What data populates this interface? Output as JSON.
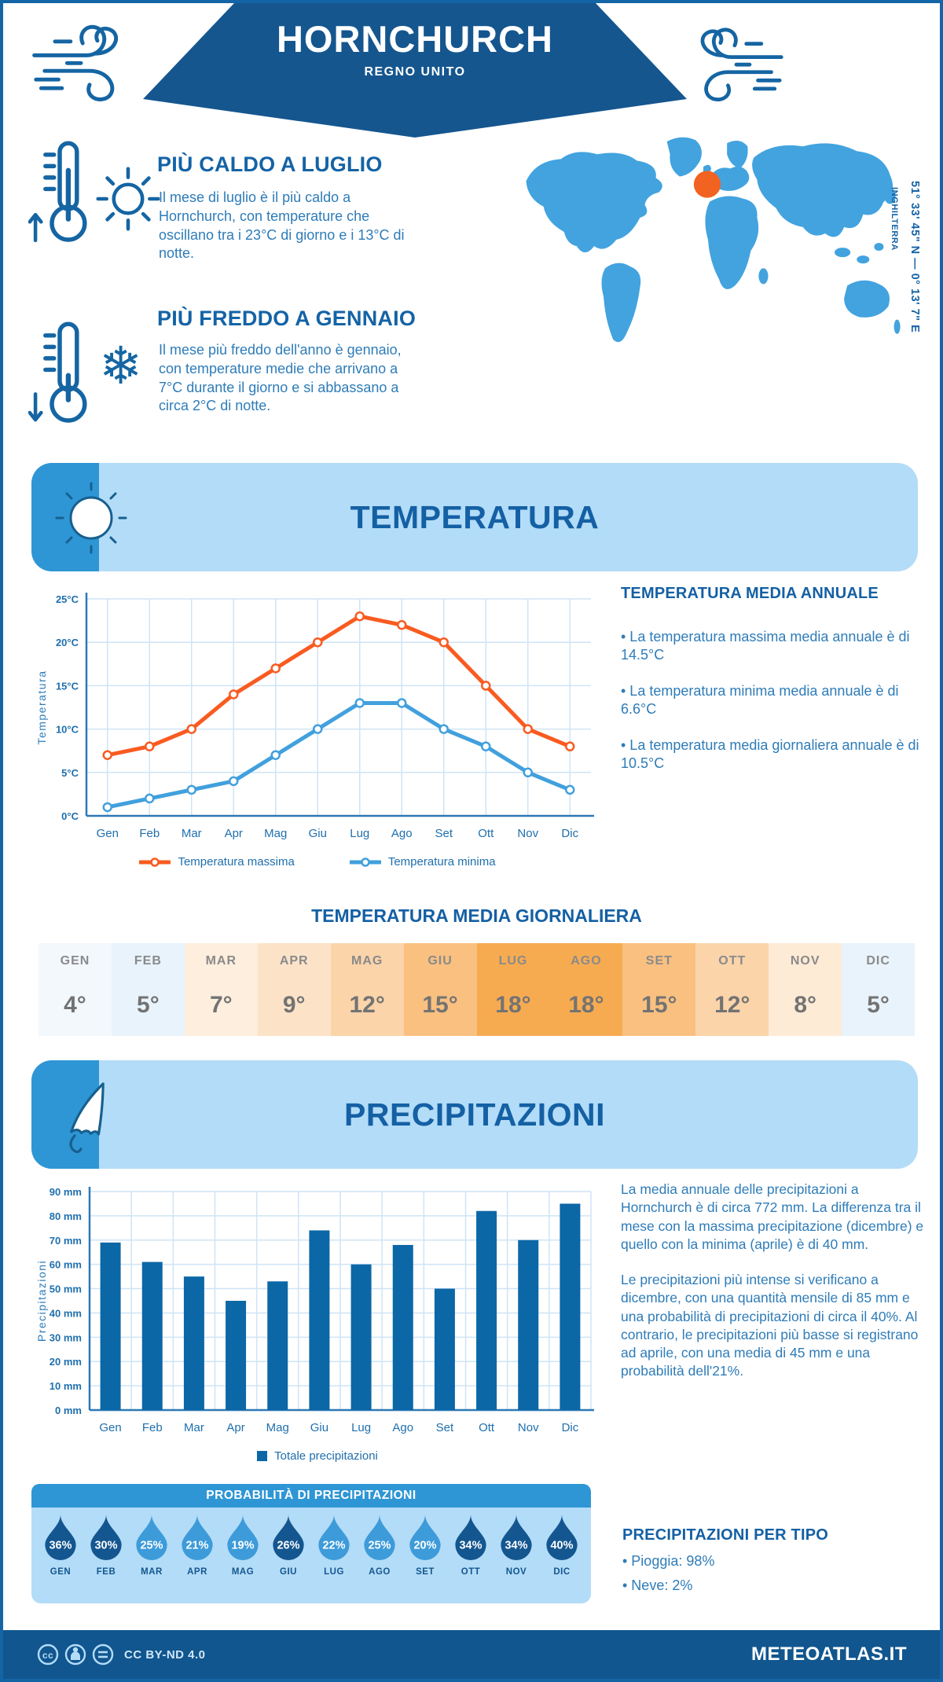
{
  "header": {
    "title": "HORNCHURCH",
    "subtitle": "REGNO UNITO"
  },
  "highlights": [
    {
      "title": "PIÙ CALDO A LUGLIO",
      "text": "Il mese di luglio è il più caldo a Hornchurch, con temperature che oscillano tra i 23°C di giorno e i 13°C di notte."
    },
    {
      "title": "PIÙ FREDDO A GENNAIO",
      "text": "Il mese più freddo dell'anno è gennaio, con temperature medie che arrivano a 7°C durante il giorno e si abbassano a circa 2°C di notte."
    }
  ],
  "map": {
    "coordinates": "51° 33' 45\" N — 0° 13' 7\" E",
    "region": "INGHILTERRA",
    "marker_color": "#f26221",
    "land_color": "#42a3df"
  },
  "sections": {
    "temperature": "TEMPERATURA",
    "precipitation": "PRECIPITAZIONI"
  },
  "chart_data": [
    {
      "type": "line",
      "title": "Temperatura",
      "categories": [
        "Gen",
        "Feb",
        "Mar",
        "Apr",
        "Mag",
        "Giu",
        "Lug",
        "Ago",
        "Set",
        "Ott",
        "Nov",
        "Dic"
      ],
      "series": [
        {
          "name": "Temperatura massima",
          "color": "#f95b20",
          "values": [
            7,
            8,
            10,
            14,
            17,
            20,
            23,
            22,
            20,
            15,
            10,
            8
          ]
        },
        {
          "name": "Temperatura minima",
          "color": "#41a0dd",
          "values": [
            1,
            2,
            3,
            4,
            7,
            10,
            13,
            13,
            10,
            8,
            5,
            3
          ]
        }
      ],
      "ylabel": "Temperatura",
      "yticks": [
        "0°C",
        "5°C",
        "10°C",
        "15°C",
        "20°C",
        "25°C"
      ],
      "ylim": [
        0,
        25
      ],
      "grid": true,
      "legend_position": "bottom"
    },
    {
      "type": "bar",
      "title": "Precipitazioni",
      "categories": [
        "Gen",
        "Feb",
        "Mar",
        "Apr",
        "Mag",
        "Giu",
        "Lug",
        "Ago",
        "Set",
        "Ott",
        "Nov",
        "Dic"
      ],
      "values": [
        69,
        61,
        55,
        45,
        53,
        74,
        60,
        68,
        50,
        82,
        70,
        85
      ],
      "legend": "Totale precipitazioni",
      "bar_color": "#0c67a6",
      "ylabel": "Precipitazioni",
      "yticks": [
        "0 mm",
        "10 mm",
        "20 mm",
        "30 mm",
        "40 mm",
        "50 mm",
        "60 mm",
        "70 mm",
        "80 mm",
        "90 mm"
      ],
      "ylim": [
        0,
        90
      ],
      "grid": true,
      "legend_position": "bottom"
    }
  ],
  "annual": {
    "title": "TEMPERATURA MEDIA ANNUALE",
    "bullets": [
      "• La temperatura massima media annuale è di 14.5°C",
      "• La temperatura minima media annuale è di 6.6°C",
      "• La temperatura media giornaliera annuale è di 10.5°C"
    ]
  },
  "daily_table": {
    "title": "TEMPERATURA MEDIA GIORNALIERA",
    "months": [
      "GEN",
      "FEB",
      "MAR",
      "APR",
      "MAG",
      "GIU",
      "LUG",
      "AGO",
      "SET",
      "OTT",
      "NOV",
      "DIC"
    ],
    "values": [
      "4°",
      "5°",
      "7°",
      "9°",
      "12°",
      "15°",
      "18°",
      "18°",
      "15°",
      "12°",
      "8°",
      "5°"
    ],
    "colors": [
      "#f3f8fd",
      "#e9f3fb",
      "#fdeedd",
      "#fce3c8",
      "#fbd4aa",
      "#f9c080",
      "#f7ab51",
      "#f7ab51",
      "#f9c080",
      "#fbd4aa",
      "#fdebd6",
      "#e9f3fb"
    ]
  },
  "precip_text": {
    "p1": "La media annuale delle precipitazioni a Hornchurch è di circa 772 mm. La differenza tra il mese con la massima precipitazione (dicembre) e quello con la minima (aprile) è di 40 mm.",
    "p2": "Le precipitazioni più intense si verificano a dicembre, con una quantità mensile di 85 mm e una probabilità di precipitazioni di circa il 40%. Al contrario, le precipitazioni più basse si registrano ad aprile, con una media di 45 mm e una probabilità dell'21%."
  },
  "probability": {
    "title": "PROBABILITÀ DI PRECIPITAZIONI",
    "months": [
      "GEN",
      "FEB",
      "MAR",
      "APR",
      "MAG",
      "GIU",
      "LUG",
      "AGO",
      "SET",
      "OTT",
      "NOV",
      "DIC"
    ],
    "values": [
      "36%",
      "30%",
      "25%",
      "21%",
      "19%",
      "26%",
      "22%",
      "25%",
      "20%",
      "34%",
      "34%",
      "40%"
    ],
    "dark": [
      true,
      true,
      false,
      false,
      false,
      true,
      false,
      false,
      false,
      true,
      true,
      true
    ],
    "drop_dark_color": "#14568f",
    "drop_light_color": "#3d9bd9"
  },
  "precip_type": {
    "title": "PRECIPITAZIONI PER TIPO",
    "bullets": [
      "• Pioggia: 98%",
      "• Neve: 2%"
    ]
  },
  "footer": {
    "license": "CC BY-ND 4.0",
    "site": "METEOATLAS.IT"
  },
  "colors": {
    "banner": "#15568f",
    "heading": "#1463a6",
    "body_text": "#2e7cb8",
    "light_banner": "#b3dcf8",
    "accent": "#2e96d5",
    "footer": "#11568e",
    "grid": "#cfe4f6",
    "axis": "#2d79b5",
    "axis_text": "#1f6fad"
  }
}
